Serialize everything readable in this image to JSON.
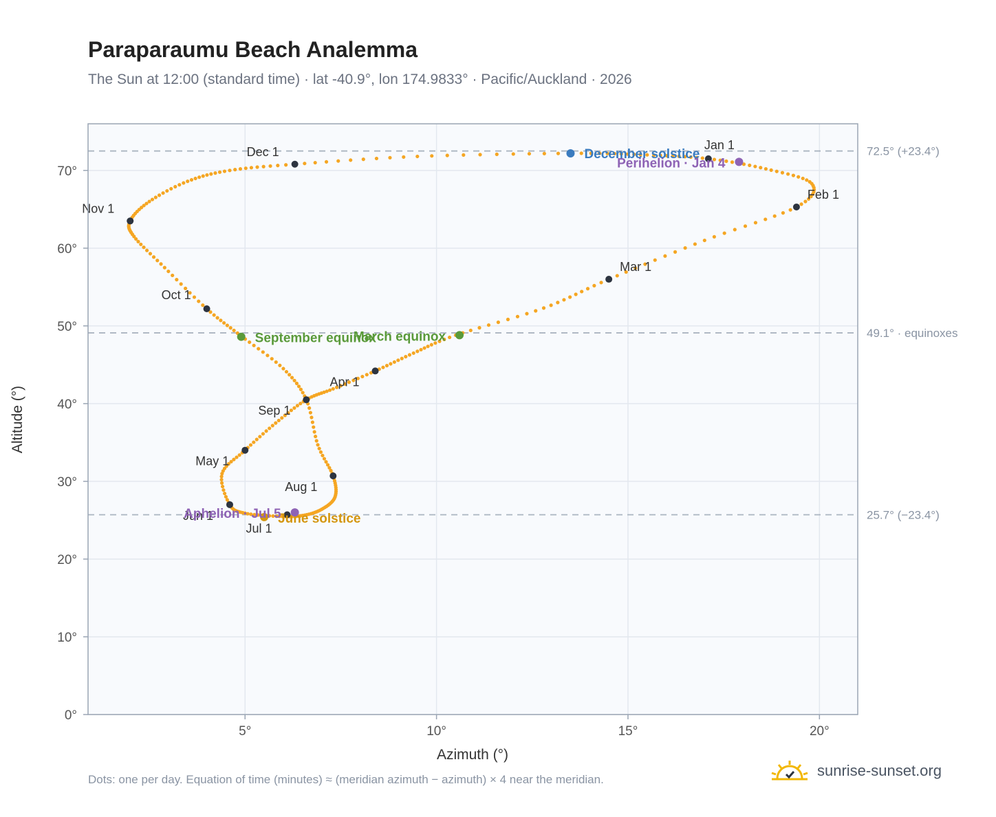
{
  "title": "Paraparaumu Beach Analemma",
  "subtitle": "The Sun at 12:00 (standard time) · lat -40.9°, lon 174.9833° · Pacific/Auckland · 2026",
  "footnote": "Dots: one per day. Equation of time (minutes) ≈ (meridian azimuth − azimuth) × 4 near the meridian.",
  "brand": "sunrise-sunset.org",
  "colors": {
    "path": "#f5a623",
    "month_marker": "#2d3440",
    "december_solstice": "#3a7bbf",
    "june_solstice": "#d4960f",
    "equinox": "#5a9a3a",
    "apsis": "#8e63b5",
    "reference_line": "#aab4c0",
    "plot_background": "#f8fafd",
    "grid": "#e3e8ef",
    "axis_frame": "#9aa5b4",
    "brand_sun": "#f2b705"
  },
  "chart_data": {
    "type": "scatter",
    "xlabel": "Azimuth (°)",
    "ylabel": "Altitude (°)",
    "xlim": [
      0.9,
      21.0
    ],
    "ylim": [
      0,
      76
    ],
    "x_ticks": [
      5,
      10,
      15,
      20
    ],
    "x_tick_labels": [
      "5°",
      "10°",
      "15°",
      "20°"
    ],
    "y_ticks": [
      0,
      10,
      20,
      30,
      40,
      50,
      60,
      70
    ],
    "y_tick_labels": [
      "0°",
      "10°",
      "20°",
      "30°",
      "40°",
      "50°",
      "60°",
      "70°"
    ],
    "grid": true,
    "series": [
      {
        "points": [
          [
            17.1,
            71.5
          ],
          [
            18.6,
            70.2
          ],
          [
            19.8,
            68.3
          ],
          [
            19.4,
            65.3
          ],
          [
            17.0,
            61.0
          ],
          [
            14.5,
            56.0
          ],
          [
            12.8,
            52.3
          ],
          [
            10.5,
            48.8
          ],
          [
            9.4,
            46.5
          ],
          [
            8.4,
            44.2
          ],
          [
            7.3,
            41.9
          ],
          [
            6.6,
            40.5
          ],
          [
            5.8,
            37.5
          ],
          [
            5.0,
            34.0
          ],
          [
            4.4,
            31.0
          ],
          [
            4.6,
            27.0
          ],
          [
            5.0,
            25.9
          ],
          [
            5.9,
            25.5
          ],
          [
            6.5,
            25.6
          ],
          [
            7.0,
            26.4
          ],
          [
            7.35,
            28.0
          ],
          [
            7.3,
            30.7
          ],
          [
            6.9,
            34.7
          ],
          [
            6.6,
            40.5
          ],
          [
            6.0,
            44.5
          ],
          [
            4.9,
            48.7
          ],
          [
            4.0,
            52.2
          ],
          [
            2.9,
            57.5
          ],
          [
            2.1,
            61.5
          ],
          [
            2.0,
            63.5
          ],
          [
            2.5,
            66.0
          ],
          [
            3.5,
            68.6
          ],
          [
            4.6,
            70.0
          ],
          [
            6.3,
            70.8
          ],
          [
            9.5,
            71.8
          ],
          [
            13.5,
            72.2
          ],
          [
            15.5,
            72.0
          ],
          [
            17.1,
            71.5
          ]
        ]
      }
    ],
    "month_markers": [
      {
        "label": "Jan 1",
        "x": 17.1,
        "y": 71.5
      },
      {
        "label": "Feb 1",
        "x": 19.4,
        "y": 65.3
      },
      {
        "label": "Mar 1",
        "x": 14.5,
        "y": 56.0
      },
      {
        "label": "Apr 1",
        "x": 8.4,
        "y": 44.2
      },
      {
        "label": "May 1",
        "x": 5.0,
        "y": 34.0
      },
      {
        "label": "Jun 1",
        "x": 4.6,
        "y": 27.0
      },
      {
        "label": "Jul 1",
        "x": 6.1,
        "y": 25.7
      },
      {
        "label": "Aug 1",
        "x": 7.3,
        "y": 30.7
      },
      {
        "label": "Sep 1",
        "x": 6.6,
        "y": 40.5
      },
      {
        "label": "Oct 1",
        "x": 4.0,
        "y": 52.2
      },
      {
        "label": "Nov 1",
        "x": 2.0,
        "y": 63.5
      },
      {
        "label": "Dec 1",
        "x": 6.3,
        "y": 70.8
      }
    ],
    "events": [
      {
        "label": "December solstice",
        "x": 13.5,
        "y": 72.2,
        "kind": "december_solstice"
      },
      {
        "label": "Perihelion · Jan 4",
        "x": 17.9,
        "y": 71.1,
        "kind": "apsis"
      },
      {
        "label": "March equinox",
        "x": 10.6,
        "y": 48.8,
        "kind": "equinox"
      },
      {
        "label": "September equinox",
        "x": 4.9,
        "y": 48.6,
        "kind": "equinox"
      },
      {
        "label": "June solstice",
        "x": 5.5,
        "y": 25.4,
        "kind": "june_solstice"
      },
      {
        "label": "Aphelion · Jul 5",
        "x": 6.3,
        "y": 26.0,
        "kind": "apsis"
      }
    ],
    "reference_lines": [
      {
        "y": 72.5,
        "label": "72.5° (+23.4°)"
      },
      {
        "y": 49.1,
        "label": "49.1° · equinoxes"
      },
      {
        "y": 25.7,
        "label": "25.7° (−23.4°)"
      }
    ]
  }
}
